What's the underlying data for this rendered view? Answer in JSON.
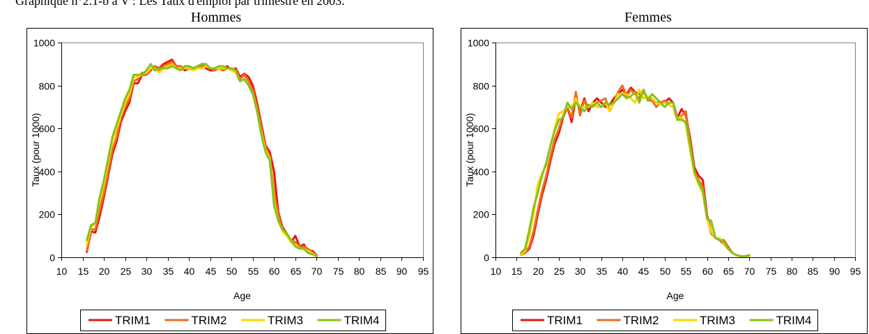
{
  "caption": "Graphique n°2.1-b à V : Les Taux d'emploi par trimestre en 2003.",
  "colors": {
    "TRIM1": "#e8170e",
    "TRIM2": "#f26b1d",
    "TRIM3": "#ffd400",
    "TRIM4": "#84c31d"
  },
  "chart_data": [
    {
      "type": "line",
      "title": "Hommes",
      "xlabel": "Age",
      "ylabel": "Taux (pour 1000)",
      "xlim": [
        10,
        95
      ],
      "ylim": [
        0,
        1000
      ],
      "xticks": [
        10,
        15,
        20,
        25,
        30,
        35,
        40,
        45,
        50,
        55,
        60,
        65,
        70,
        75,
        80,
        85,
        90,
        95
      ],
      "yticks": [
        0,
        200,
        400,
        600,
        800,
        1000
      ],
      "legend": "bottom",
      "x": [
        16,
        17,
        18,
        19,
        20,
        21,
        22,
        23,
        24,
        25,
        26,
        27,
        28,
        29,
        30,
        31,
        32,
        33,
        34,
        35,
        36,
        37,
        38,
        39,
        40,
        41,
        42,
        43,
        44,
        45,
        46,
        47,
        48,
        49,
        50,
        51,
        52,
        53,
        54,
        55,
        56,
        57,
        58,
        59,
        60,
        61,
        62,
        63,
        64,
        65,
        66,
        67,
        68,
        69,
        70
      ],
      "series": [
        {
          "name": "TRIM1",
          "values": [
            25,
            120,
            115,
            190,
            280,
            380,
            480,
            540,
            630,
            680,
            720,
            810,
            810,
            850,
            850,
            870,
            890,
            880,
            900,
            910,
            920,
            890,
            890,
            870,
            880,
            880,
            890,
            900,
            880,
            870,
            870,
            880,
            880,
            890,
            870,
            880,
            840,
            855,
            840,
            800,
            720,
            620,
            520,
            490,
            400,
            210,
            140,
            110,
            70,
            100,
            50,
            60,
            30,
            30,
            10
          ]
        },
        {
          "name": "TRIM2",
          "values": [
            30,
            130,
            130,
            220,
            300,
            400,
            500,
            560,
            650,
            700,
            740,
            820,
            830,
            860,
            850,
            880,
            890,
            870,
            890,
            900,
            910,
            890,
            890,
            880,
            890,
            880,
            880,
            890,
            890,
            880,
            870,
            880,
            870,
            880,
            880,
            870,
            830,
            850,
            820,
            780,
            700,
            600,
            510,
            470,
            300,
            200,
            130,
            110,
            80,
            70,
            50,
            50,
            40,
            20,
            10
          ]
        },
        {
          "name": "TRIM3",
          "values": [
            60,
            140,
            160,
            260,
            340,
            440,
            540,
            600,
            660,
            720,
            760,
            840,
            840,
            850,
            860,
            880,
            880,
            860,
            880,
            890,
            900,
            880,
            880,
            880,
            880,
            870,
            880,
            880,
            890,
            880,
            880,
            880,
            880,
            880,
            870,
            860,
            820,
            830,
            800,
            760,
            680,
            580,
            500,
            460,
            260,
            170,
            120,
            100,
            70,
            60,
            40,
            40,
            30,
            20,
            5
          ]
        },
        {
          "name": "TRIM4",
          "values": [
            80,
            150,
            160,
            280,
            360,
            460,
            560,
            620,
            680,
            740,
            780,
            850,
            850,
            850,
            870,
            900,
            870,
            880,
            880,
            880,
            890,
            880,
            870,
            890,
            890,
            880,
            890,
            900,
            900,
            880,
            880,
            890,
            890,
            880,
            880,
            870,
            820,
            830,
            800,
            760,
            680,
            570,
            490,
            450,
            240,
            170,
            130,
            110,
            80,
            50,
            40,
            40,
            20,
            15,
            5
          ]
        }
      ]
    },
    {
      "type": "line",
      "title": "Femmes",
      "xlabel": "Age",
      "ylabel": "Taux (pour 1000)",
      "xlim": [
        10,
        95
      ],
      "ylim": [
        0,
        1000
      ],
      "xticks": [
        10,
        15,
        20,
        25,
        30,
        35,
        40,
        45,
        50,
        55,
        60,
        65,
        70,
        75,
        80,
        85,
        90,
        95
      ],
      "yticks": [
        0,
        200,
        400,
        600,
        800,
        1000
      ],
      "legend": "bottom",
      "x": [
        16,
        17,
        18,
        19,
        20,
        21,
        22,
        23,
        24,
        25,
        26,
        27,
        28,
        29,
        30,
        31,
        32,
        33,
        34,
        35,
        36,
        37,
        38,
        39,
        40,
        41,
        42,
        43,
        44,
        45,
        46,
        47,
        48,
        49,
        50,
        51,
        52,
        53,
        54,
        55,
        56,
        57,
        58,
        59,
        60,
        61,
        62,
        63,
        64,
        65,
        66,
        67,
        68,
        69,
        70
      ],
      "series": [
        {
          "name": "TRIM1",
          "values": [
            10,
            20,
            40,
            100,
            200,
            290,
            360,
            450,
            530,
            580,
            650,
            700,
            630,
            740,
            680,
            740,
            680,
            720,
            740,
            720,
            700,
            710,
            740,
            760,
            780,
            760,
            790,
            770,
            760,
            770,
            740,
            740,
            720,
            720,
            720,
            740,
            720,
            650,
            690,
            660,
            560,
            420,
            380,
            360,
            200,
            120,
            90,
            80,
            60,
            40,
            20,
            10,
            5,
            5,
            5
          ]
        },
        {
          "name": "TRIM2",
          "values": [
            10,
            20,
            50,
            120,
            220,
            310,
            380,
            470,
            550,
            600,
            660,
            700,
            650,
            770,
            660,
            730,
            700,
            710,
            720,
            730,
            740,
            680,
            720,
            770,
            800,
            750,
            780,
            760,
            740,
            780,
            730,
            730,
            700,
            720,
            730,
            710,
            700,
            640,
            660,
            680,
            540,
            400,
            360,
            330,
            190,
            110,
            90,
            80,
            80,
            50,
            20,
            10,
            5,
            5,
            10
          ]
        },
        {
          "name": "TRIM3",
          "values": [
            10,
            30,
            100,
            200,
            340,
            390,
            430,
            520,
            600,
            670,
            680,
            700,
            700,
            740,
            700,
            700,
            700,
            720,
            700,
            700,
            720,
            680,
            720,
            760,
            760,
            760,
            740,
            720,
            780,
            740,
            750,
            740,
            720,
            710,
            720,
            710,
            700,
            650,
            650,
            620,
            500,
            390,
            340,
            300,
            180,
            120,
            90,
            90,
            60,
            40,
            20,
            10,
            5,
            5,
            5
          ]
        },
        {
          "name": "TRIM4",
          "values": [
            20,
            40,
            130,
            230,
            300,
            380,
            440,
            520,
            590,
            640,
            650,
            720,
            690,
            720,
            700,
            680,
            710,
            700,
            720,
            700,
            720,
            710,
            720,
            740,
            760,
            740,
            750,
            770,
            720,
            780,
            730,
            760,
            740,
            720,
            700,
            720,
            720,
            640,
            640,
            630,
            520,
            400,
            350,
            310,
            180,
            170,
            90,
            80,
            70,
            40,
            20,
            10,
            5,
            5,
            10
          ]
        }
      ]
    }
  ]
}
